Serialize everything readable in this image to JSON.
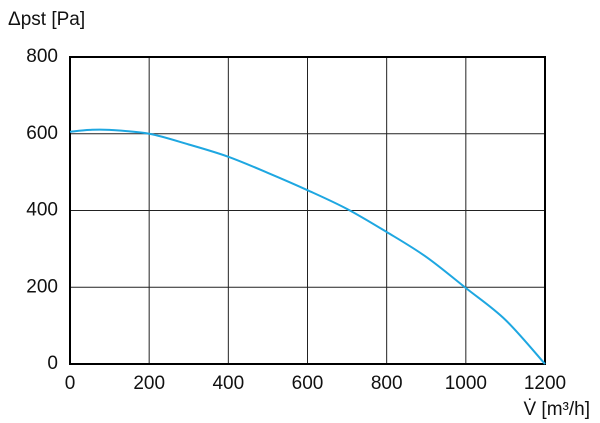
{
  "chart_data": {
    "type": "line",
    "y_label": "Δpst [Pa]",
    "x_label": "V̇ [m³/h]",
    "x": [
      0,
      50,
      100,
      200,
      300,
      400,
      500,
      600,
      700,
      800,
      900,
      1000,
      1100,
      1200
    ],
    "values": [
      605,
      610,
      610,
      600,
      572,
      540,
      498,
      453,
      404,
      344,
      279,
      198,
      115,
      0
    ],
    "color": "#1ea7e1",
    "xlim": [
      0,
      1200
    ],
    "xticks": [
      0,
      200,
      400,
      600,
      800,
      1000,
      1200
    ],
    "ylim": [
      0,
      800
    ],
    "yticks": [
      0,
      200,
      400,
      600,
      800
    ],
    "grid": true
  }
}
